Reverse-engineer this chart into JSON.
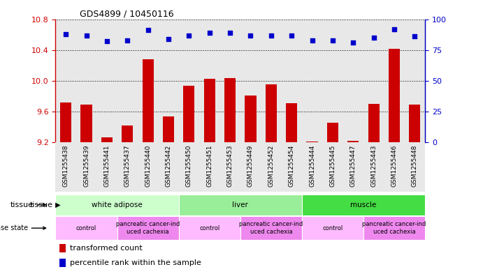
{
  "title": "GDS4899 / 10450116",
  "samples": [
    "GSM1255438",
    "GSM1255439",
    "GSM1255441",
    "GSM1255437",
    "GSM1255440",
    "GSM1255442",
    "GSM1255450",
    "GSM1255451",
    "GSM1255453",
    "GSM1255449",
    "GSM1255452",
    "GSM1255454",
    "GSM1255444",
    "GSM1255445",
    "GSM1255447",
    "GSM1255443",
    "GSM1255446",
    "GSM1255448"
  ],
  "bar_values": [
    9.72,
    9.69,
    9.27,
    9.42,
    10.28,
    9.54,
    9.94,
    10.03,
    10.04,
    9.81,
    9.95,
    9.71,
    9.21,
    9.46,
    9.22,
    9.7,
    10.42,
    9.69
  ],
  "dot_values": [
    88,
    87,
    82,
    83,
    91,
    84,
    87,
    89,
    89,
    87,
    87,
    87,
    83,
    83,
    81,
    85,
    92,
    86
  ],
  "bar_color": "#cc0000",
  "dot_color": "#0000cc",
  "ylim_left": [
    9.2,
    10.8
  ],
  "ylim_right": [
    0,
    100
  ],
  "yticks_left": [
    9.2,
    9.6,
    10.0,
    10.4,
    10.8
  ],
  "yticks_right": [
    0,
    25,
    50,
    75,
    100
  ],
  "tissue_groups": [
    {
      "label": "white adipose",
      "start": 0,
      "end": 6,
      "color": "#ccffcc"
    },
    {
      "label": "liver",
      "start": 6,
      "end": 12,
      "color": "#99ee99"
    },
    {
      "label": "muscle",
      "start": 12,
      "end": 18,
      "color": "#44dd44"
    }
  ],
  "disease_groups": [
    {
      "label": "control",
      "start": 0,
      "end": 3,
      "color": "#ffbbff"
    },
    {
      "label": "pancreatic cancer-ind\nuced cachexia",
      "start": 3,
      "end": 6,
      "color": "#ee88ee"
    },
    {
      "label": "control",
      "start": 6,
      "end": 9,
      "color": "#ffbbff"
    },
    {
      "label": "pancreatic cancer-ind\nuced cachexia",
      "start": 9,
      "end": 12,
      "color": "#ee88ee"
    },
    {
      "label": "control",
      "start": 12,
      "end": 15,
      "color": "#ffbbff"
    },
    {
      "label": "pancreatic cancer-ind\nuced cachexia",
      "start": 15,
      "end": 18,
      "color": "#ee88ee"
    }
  ],
  "legend_items": [
    {
      "color": "#cc0000",
      "label": "transformed count"
    },
    {
      "color": "#0000cc",
      "label": "percentile rank within the sample"
    }
  ],
  "bar_width": 0.55,
  "tick_color_left": "#cc0000",
  "tick_color_right": "#0000cc",
  "plot_bg": "#e8e8e8"
}
